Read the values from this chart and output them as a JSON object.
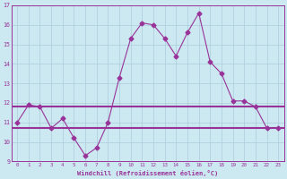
{
  "x": [
    0,
    1,
    2,
    3,
    4,
    5,
    6,
    7,
    8,
    9,
    10,
    11,
    12,
    13,
    14,
    15,
    16,
    17,
    18,
    19,
    20,
    21,
    22,
    23
  ],
  "y": [
    11.0,
    11.9,
    11.8,
    10.7,
    11.2,
    10.2,
    9.3,
    9.7,
    11.0,
    13.3,
    15.3,
    16.1,
    16.0,
    15.3,
    14.4,
    15.6,
    16.6,
    14.1,
    13.5,
    12.1,
    12.1,
    11.8,
    10.7,
    10.7
  ],
  "hline_upper": 11.8,
  "hline_lower": 10.7,
  "line_color": "#993399",
  "bg_color": "#cce8f0",
  "grid_color": "#aaccdd",
  "xlabel": "Windchill (Refroidissement éolien,°C)",
  "ylim": [
    9,
    17
  ],
  "xlim": [
    -0.5,
    23.5
  ],
  "yticks": [
    9,
    10,
    11,
    12,
    13,
    14,
    15,
    16,
    17
  ],
  "xticks": [
    0,
    1,
    2,
    3,
    4,
    5,
    6,
    7,
    8,
    9,
    10,
    11,
    12,
    13,
    14,
    15,
    16,
    17,
    18,
    19,
    20,
    21,
    22,
    23
  ],
  "marker": "D",
  "markersize": 2.5,
  "linewidth": 0.8,
  "hline_linewidth": 1.5
}
